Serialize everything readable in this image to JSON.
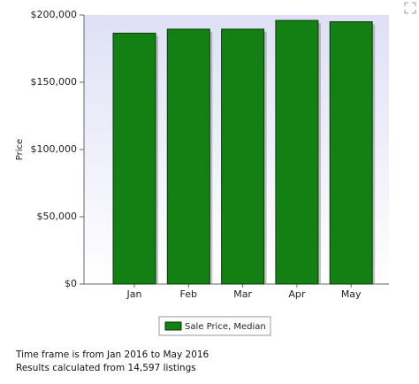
{
  "chart_data": {
    "type": "bar",
    "y_label": "Price",
    "categories": [
      "Jan",
      "Feb",
      "Mar",
      "Apr",
      "May"
    ],
    "series": [
      {
        "name": "Sale Price, Median",
        "color": "#138013",
        "values": [
          186500,
          189500,
          189500,
          196000,
          195000
        ]
      }
    ],
    "ylim": [
      0,
      200000
    ],
    "yticks": [
      {
        "value": 0,
        "label": "$0"
      },
      {
        "value": 50000,
        "label": "$50,000"
      },
      {
        "value": 100000,
        "label": "$100,000"
      },
      {
        "value": 150000,
        "label": "$150,000"
      },
      {
        "value": 200000,
        "label": "$200,000"
      }
    ],
    "notes": [
      "Time frame is from Jan 2016 to May 2016",
      "Results calculated from 14,597 listings"
    ]
  }
}
